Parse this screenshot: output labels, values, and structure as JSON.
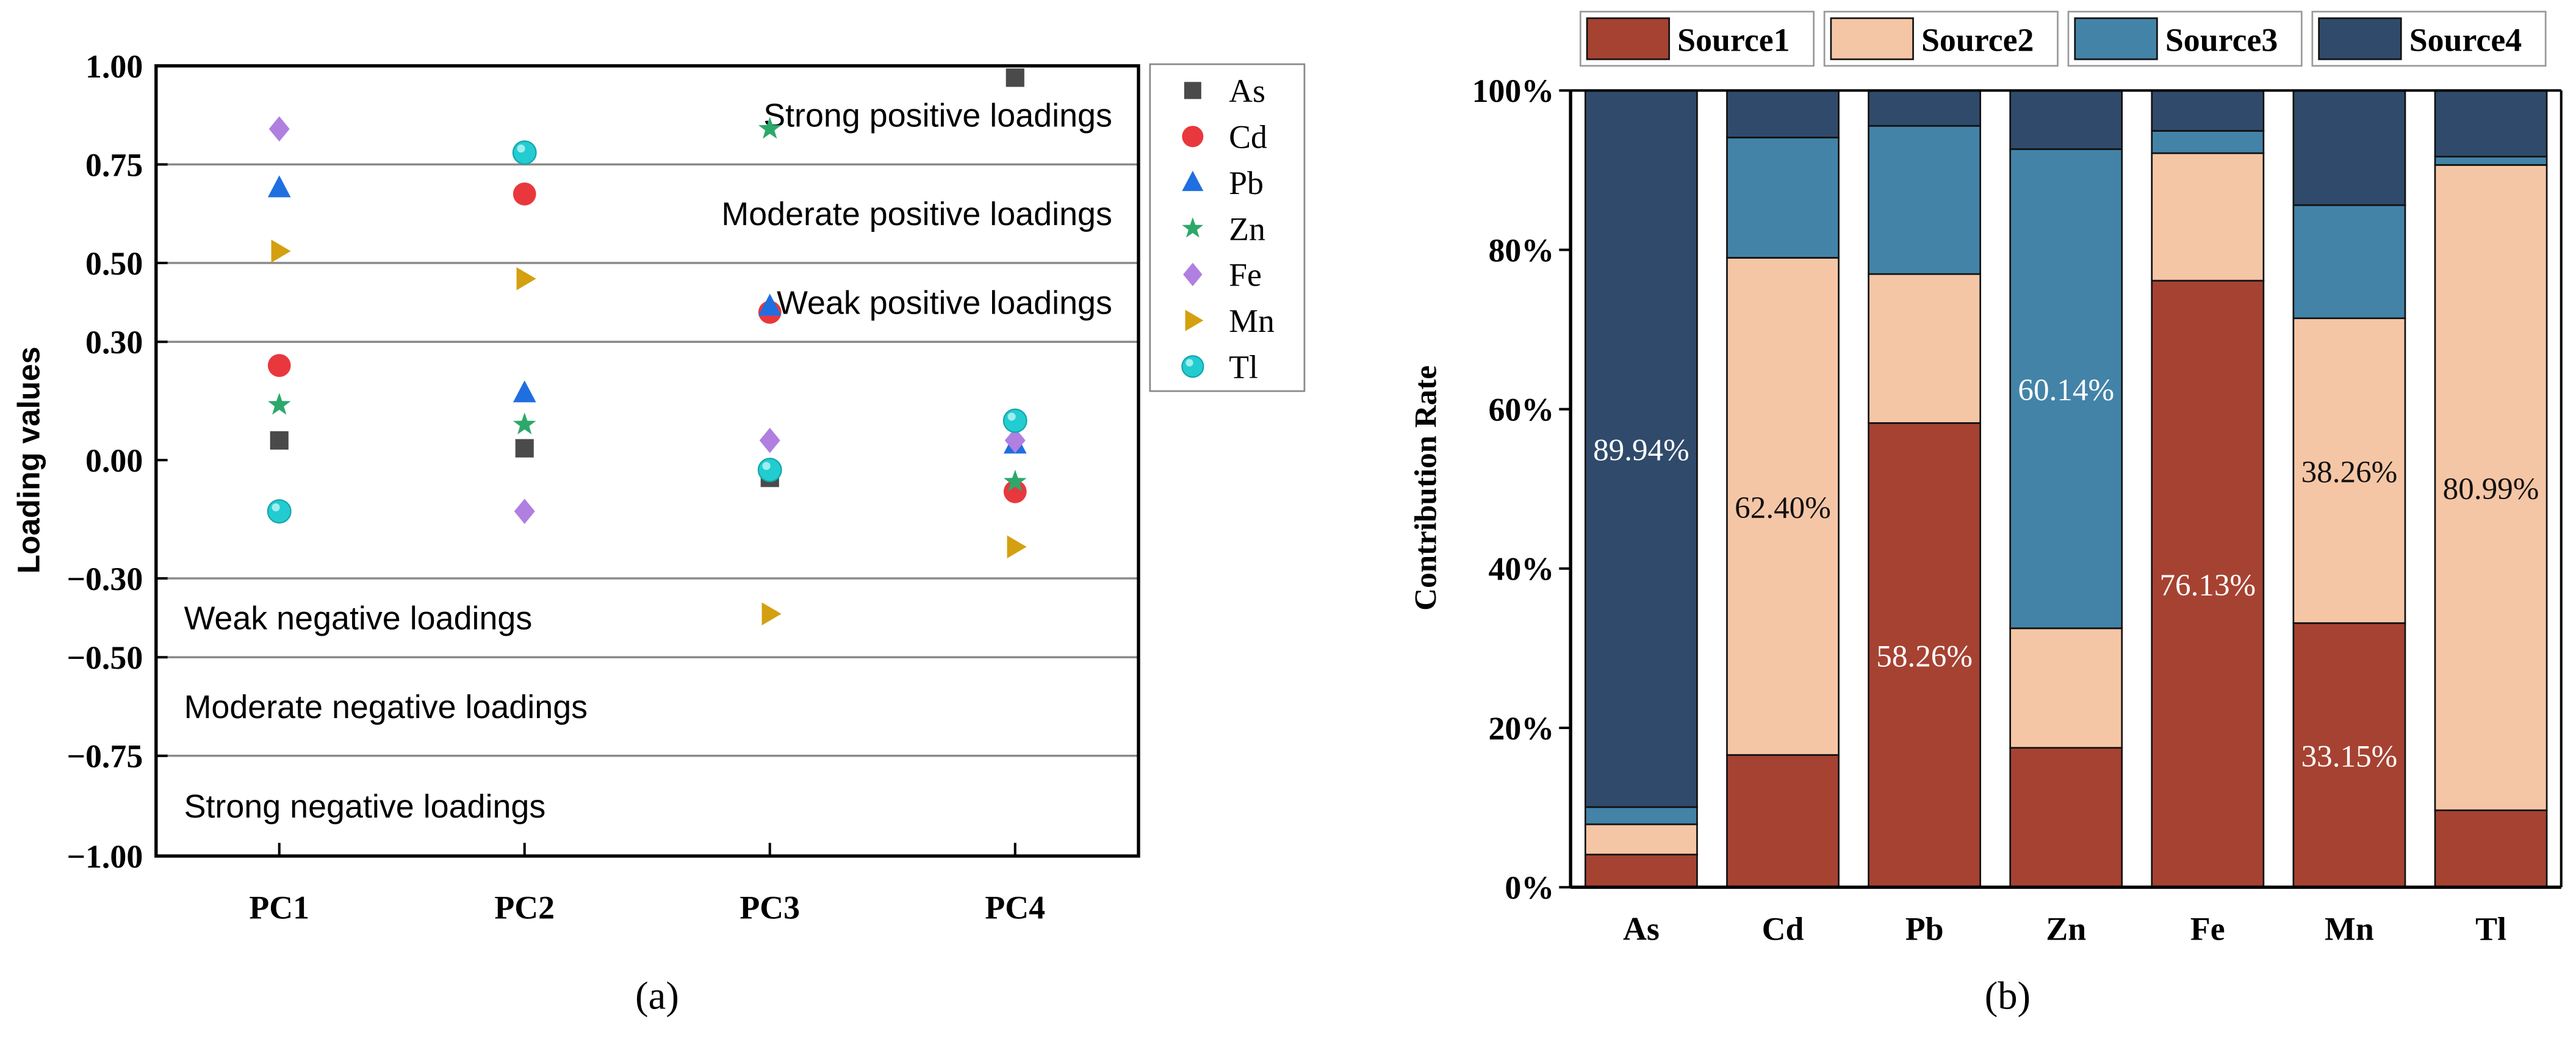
{
  "chart_data": [
    {
      "type": "scatter",
      "panel_label": "(a)",
      "title": "",
      "xlabel": "",
      "ylabel": "Loading values",
      "categories": [
        "PC1",
        "PC2",
        "PC3",
        "PC4"
      ],
      "ylim": [
        -1.0,
        1.0
      ],
      "yticks": [
        1.0,
        0.75,
        0.5,
        0.3,
        0.0,
        -0.3,
        -0.5,
        -0.75,
        -1.0
      ],
      "ytick_labels": [
        "1.00",
        "0.75",
        "0.50",
        "0.30",
        "0.00",
        "−0.30",
        "−0.50",
        "−0.75",
        "−1.00"
      ],
      "band_lines": [
        0.75,
        0.5,
        0.3,
        -0.3,
        -0.5,
        -0.75
      ],
      "band_labels": [
        {
          "text": "Strong positive loadings",
          "side": "right",
          "band": [
            0.75,
            1.0
          ]
        },
        {
          "text": "Moderate positive loadings",
          "side": "right",
          "band": [
            0.5,
            0.75
          ]
        },
        {
          "text": "Weak positive loadings",
          "side": "right",
          "band": [
            0.3,
            0.5
          ]
        },
        {
          "text": "Weak negative loadings",
          "side": "left",
          "band": [
            -0.5,
            -0.3
          ]
        },
        {
          "text": "Moderate negative loadings",
          "side": "left",
          "band": [
            -0.75,
            -0.5
          ]
        },
        {
          "text": "Strong negative loadings",
          "side": "left",
          "band": [
            -1.0,
            -0.75
          ]
        }
      ],
      "legend_position": "outside-right-top",
      "series": [
        {
          "name": "As",
          "marker": "square",
          "color": "#4A4A4A",
          "values": [
            0.05,
            0.03,
            -0.045,
            0.97
          ]
        },
        {
          "name": "Cd",
          "marker": "circle",
          "color": "#E8383D",
          "values": [
            0.24,
            0.675,
            0.375,
            -0.08
          ]
        },
        {
          "name": "Pb",
          "marker": "triangle-up",
          "color": "#1F6FE0",
          "values": [
            0.69,
            0.17,
            0.39,
            0.04
          ]
        },
        {
          "name": "Zn",
          "marker": "star",
          "color": "#2DA86B",
          "values": [
            0.14,
            0.09,
            0.84,
            -0.055
          ]
        },
        {
          "name": "Fe",
          "marker": "diamond",
          "color": "#B07FE0",
          "values": [
            0.84,
            -0.13,
            0.05,
            0.05
          ]
        },
        {
          "name": "Mn",
          "marker": "triangle-right",
          "color": "#D4A010",
          "values": [
            0.53,
            0.46,
            -0.39,
            -0.22
          ]
        },
        {
          "name": "Tl",
          "marker": "sphere",
          "color": "#22CCD0",
          "values": [
            -0.13,
            0.78,
            -0.025,
            0.1
          ]
        }
      ]
    },
    {
      "type": "bar",
      "stacked": true,
      "panel_label": "(b)",
      "title": "",
      "xlabel": "",
      "ylabel": "Contribution Rate",
      "categories": [
        "As",
        "Cd",
        "Pb",
        "Zn",
        "Fe",
        "Mn",
        "Tl"
      ],
      "ylim": [
        0,
        100
      ],
      "yticks": [
        0,
        20,
        40,
        60,
        80,
        100
      ],
      "ytick_labels": [
        "0%",
        "20%",
        "40%",
        "60%",
        "80%",
        "100%"
      ],
      "legend_position": "top",
      "series": [
        {
          "name": "Source1",
          "color": "#A64232",
          "values": [
            4.1,
            16.6,
            58.26,
            17.5,
            76.13,
            33.15,
            9.66
          ]
        },
        {
          "name": "Source2",
          "color": "#F5C6A5",
          "values": [
            3.8,
            62.4,
            18.7,
            15.0,
            16.0,
            38.26,
            80.99
          ]
        },
        {
          "name": "Source3",
          "color": "#4383A8",
          "values": [
            2.16,
            15.1,
            18.6,
            60.14,
            2.8,
            14.2,
            1.05
          ]
        },
        {
          "name": "Source4",
          "color": "#304A6B",
          "values": [
            89.94,
            5.9,
            4.44,
            7.36,
            5.07,
            14.39,
            8.3
          ]
        }
      ],
      "data_labels": [
        {
          "category": "As",
          "series": "Source4",
          "text": "89.94%",
          "color": "#FFFFFF"
        },
        {
          "category": "Cd",
          "series": "Source2",
          "text": "62.40%",
          "color": "#111111"
        },
        {
          "category": "Pb",
          "series": "Source1",
          "text": "58.26%",
          "color": "#FFFFFF"
        },
        {
          "category": "Zn",
          "series": "Source3",
          "text": "60.14%",
          "color": "#FFFFFF"
        },
        {
          "category": "Fe",
          "series": "Source1",
          "text": "76.13%",
          "color": "#FFFFFF"
        },
        {
          "category": "Mn",
          "series": "Source2",
          "text": "38.26%",
          "color": "#111111"
        },
        {
          "category": "Mn",
          "series": "Source1",
          "text": "33.15%",
          "color": "#FFFFFF"
        },
        {
          "category": "Tl",
          "series": "Source2",
          "text": "80.99%",
          "color": "#111111"
        }
      ]
    }
  ]
}
